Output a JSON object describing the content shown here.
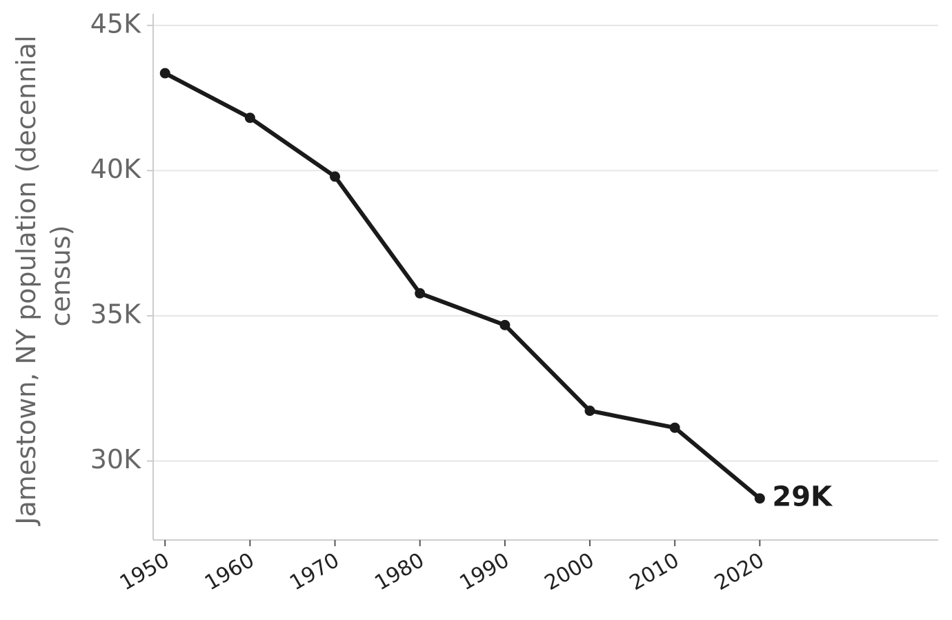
{
  "chart_data": {
    "type": "line",
    "ylabel": [
      "Jamestown, NY population (decennial",
      "census)"
    ],
    "x": [
      1950,
      1960,
      1970,
      1980,
      1990,
      2000,
      2010,
      2020
    ],
    "series": [
      {
        "color": "#1a1a1a",
        "values": [
          43354,
          41818,
          39795,
          35775,
          34681,
          31730,
          31146,
          28712
        ],
        "value_labels": [
          null,
          null,
          null,
          null,
          null,
          null,
          null,
          "29K"
        ]
      }
    ],
    "xlim": [
      1948.6,
      2041
    ],
    "xticks": [
      1950,
      1960,
      1970,
      1980,
      1990,
      2000,
      2010,
      2020
    ],
    "ylim": [
      27280,
      45400
    ],
    "yticks": [
      {
        "value": 30000,
        "label": "30K"
      },
      {
        "value": 35000,
        "label": "35K"
      },
      {
        "value": 40000,
        "label": "40K"
      },
      {
        "value": 45000,
        "label": "45K"
      }
    ],
    "grid": true
  }
}
